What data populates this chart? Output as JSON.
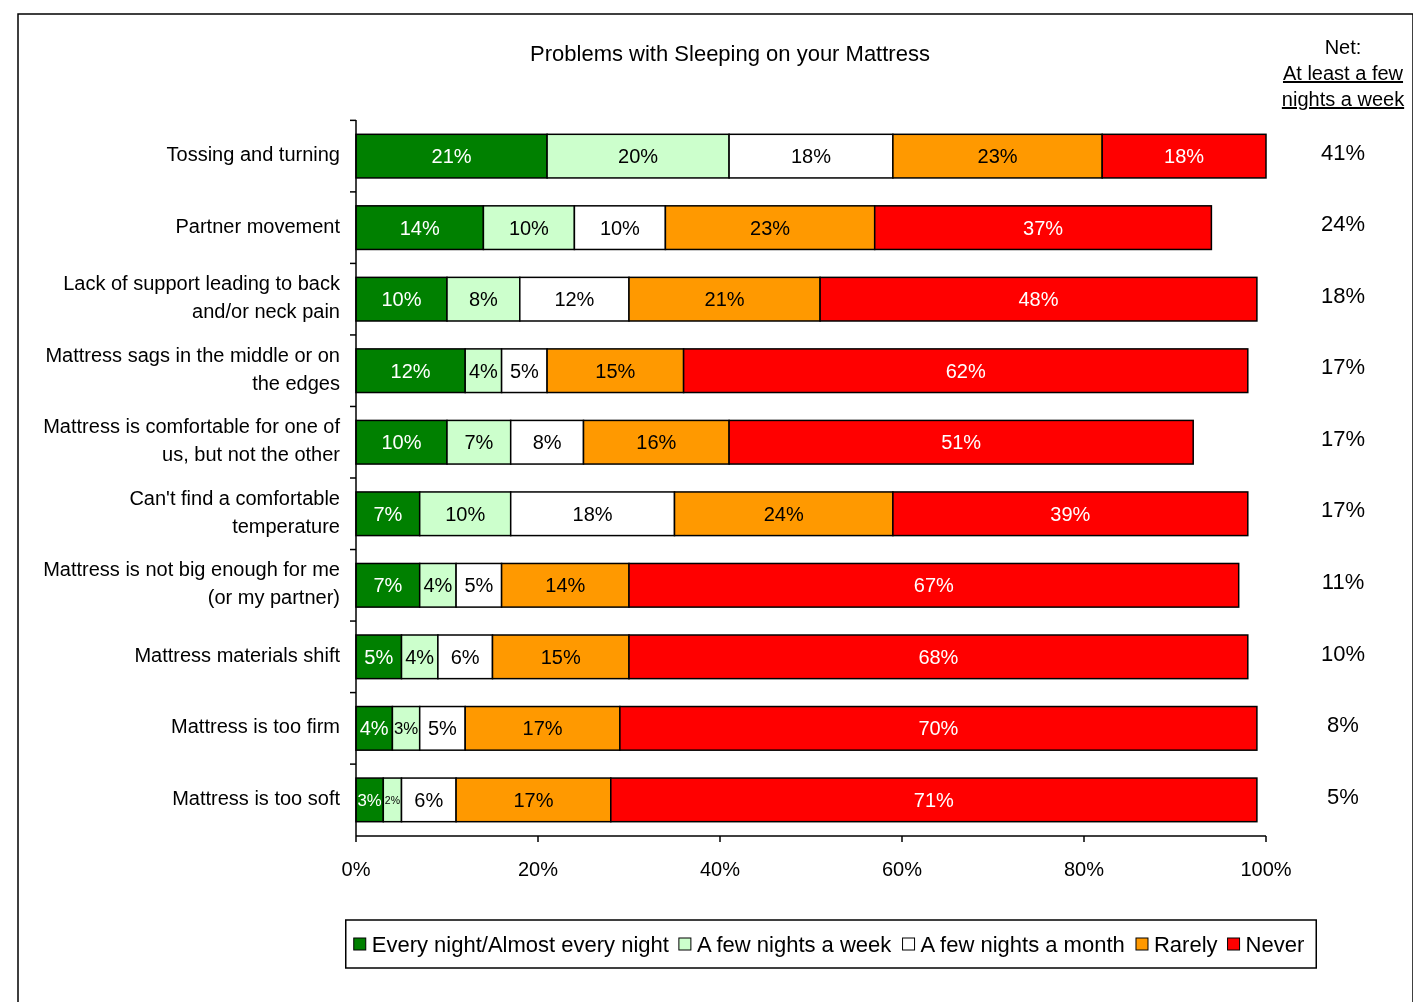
{
  "chart_data": {
    "type": "bar",
    "orientation": "horizontal",
    "stacked": true,
    "title": "Problems with Sleeping on your Mattress",
    "categories": [
      "Tossing and turning",
      "Partner movement",
      "Lack of support leading to back and/or neck pain",
      "Mattress sags in the middle or on the edges",
      "Mattress is comfortable for one of us, but not the other",
      "Can't find a comfortable temperature",
      "Mattress is not big enough for me (or my partner)",
      "Mattress materials shift",
      "Mattress is too firm",
      "Mattress is too soft"
    ],
    "series": [
      {
        "name": "Every night/Almost every night",
        "color": "#008000",
        "values": [
          21,
          14,
          10,
          12,
          10,
          7,
          7,
          5,
          4,
          3
        ],
        "value_labels": [
          "21%",
          "14%",
          "10%",
          "12%",
          "10%",
          "7%",
          "7%",
          "5%",
          "4%",
          "3%"
        ]
      },
      {
        "name": "A few nights a week",
        "color": "#ccffcc",
        "values": [
          20,
          10,
          8,
          4,
          7,
          10,
          4,
          4,
          3,
          2
        ],
        "value_labels": [
          "20%",
          "10%",
          "8%",
          "4%",
          "7%",
          "10%",
          "4%",
          "4%",
          "3%",
          "2%"
        ]
      },
      {
        "name": "A few nights a month",
        "color": "#ffffff",
        "values": [
          18,
          10,
          12,
          5,
          8,
          18,
          5,
          6,
          5,
          6
        ],
        "value_labels": [
          "18%",
          "10%",
          "12%",
          "5%",
          "8%",
          "18%",
          "5%",
          "6%",
          "5%",
          "6%"
        ]
      },
      {
        "name": "Rarely",
        "color": "#ff9900",
        "values": [
          23,
          23,
          21,
          15,
          16,
          24,
          14,
          15,
          17,
          17
        ],
        "value_labels": [
          "23%",
          "23%",
          "21%",
          "15%",
          "16%",
          "24%",
          "14%",
          "15%",
          "17%",
          "17%"
        ]
      },
      {
        "name": "Never",
        "color": "#ff0000",
        "values": [
          18,
          37,
          48,
          62,
          51,
          39,
          67,
          68,
          70,
          71
        ],
        "value_labels": [
          "18%",
          "37%",
          "48%",
          "62%",
          "51%",
          "39%",
          "67%",
          "68%",
          "70%",
          "71%"
        ]
      }
    ],
    "annotations": [
      "Net:",
      "At least a few nights a week",
      "41%",
      "24%",
      "18%",
      "17%",
      "17%",
      "17%",
      "11%",
      "10%",
      "8%",
      "5%"
    ],
    "xlim": [
      0,
      100
    ],
    "xticks": [
      {
        "value": 0,
        "label": "0%"
      },
      {
        "value": 20,
        "label": "20%"
      },
      {
        "value": 40,
        "label": "40%"
      },
      {
        "value": 60,
        "label": "60%"
      },
      {
        "value": 80,
        "label": "80%"
      },
      {
        "value": 100,
        "label": "100%"
      }
    ],
    "grid": false,
    "legend": "bottom"
  }
}
